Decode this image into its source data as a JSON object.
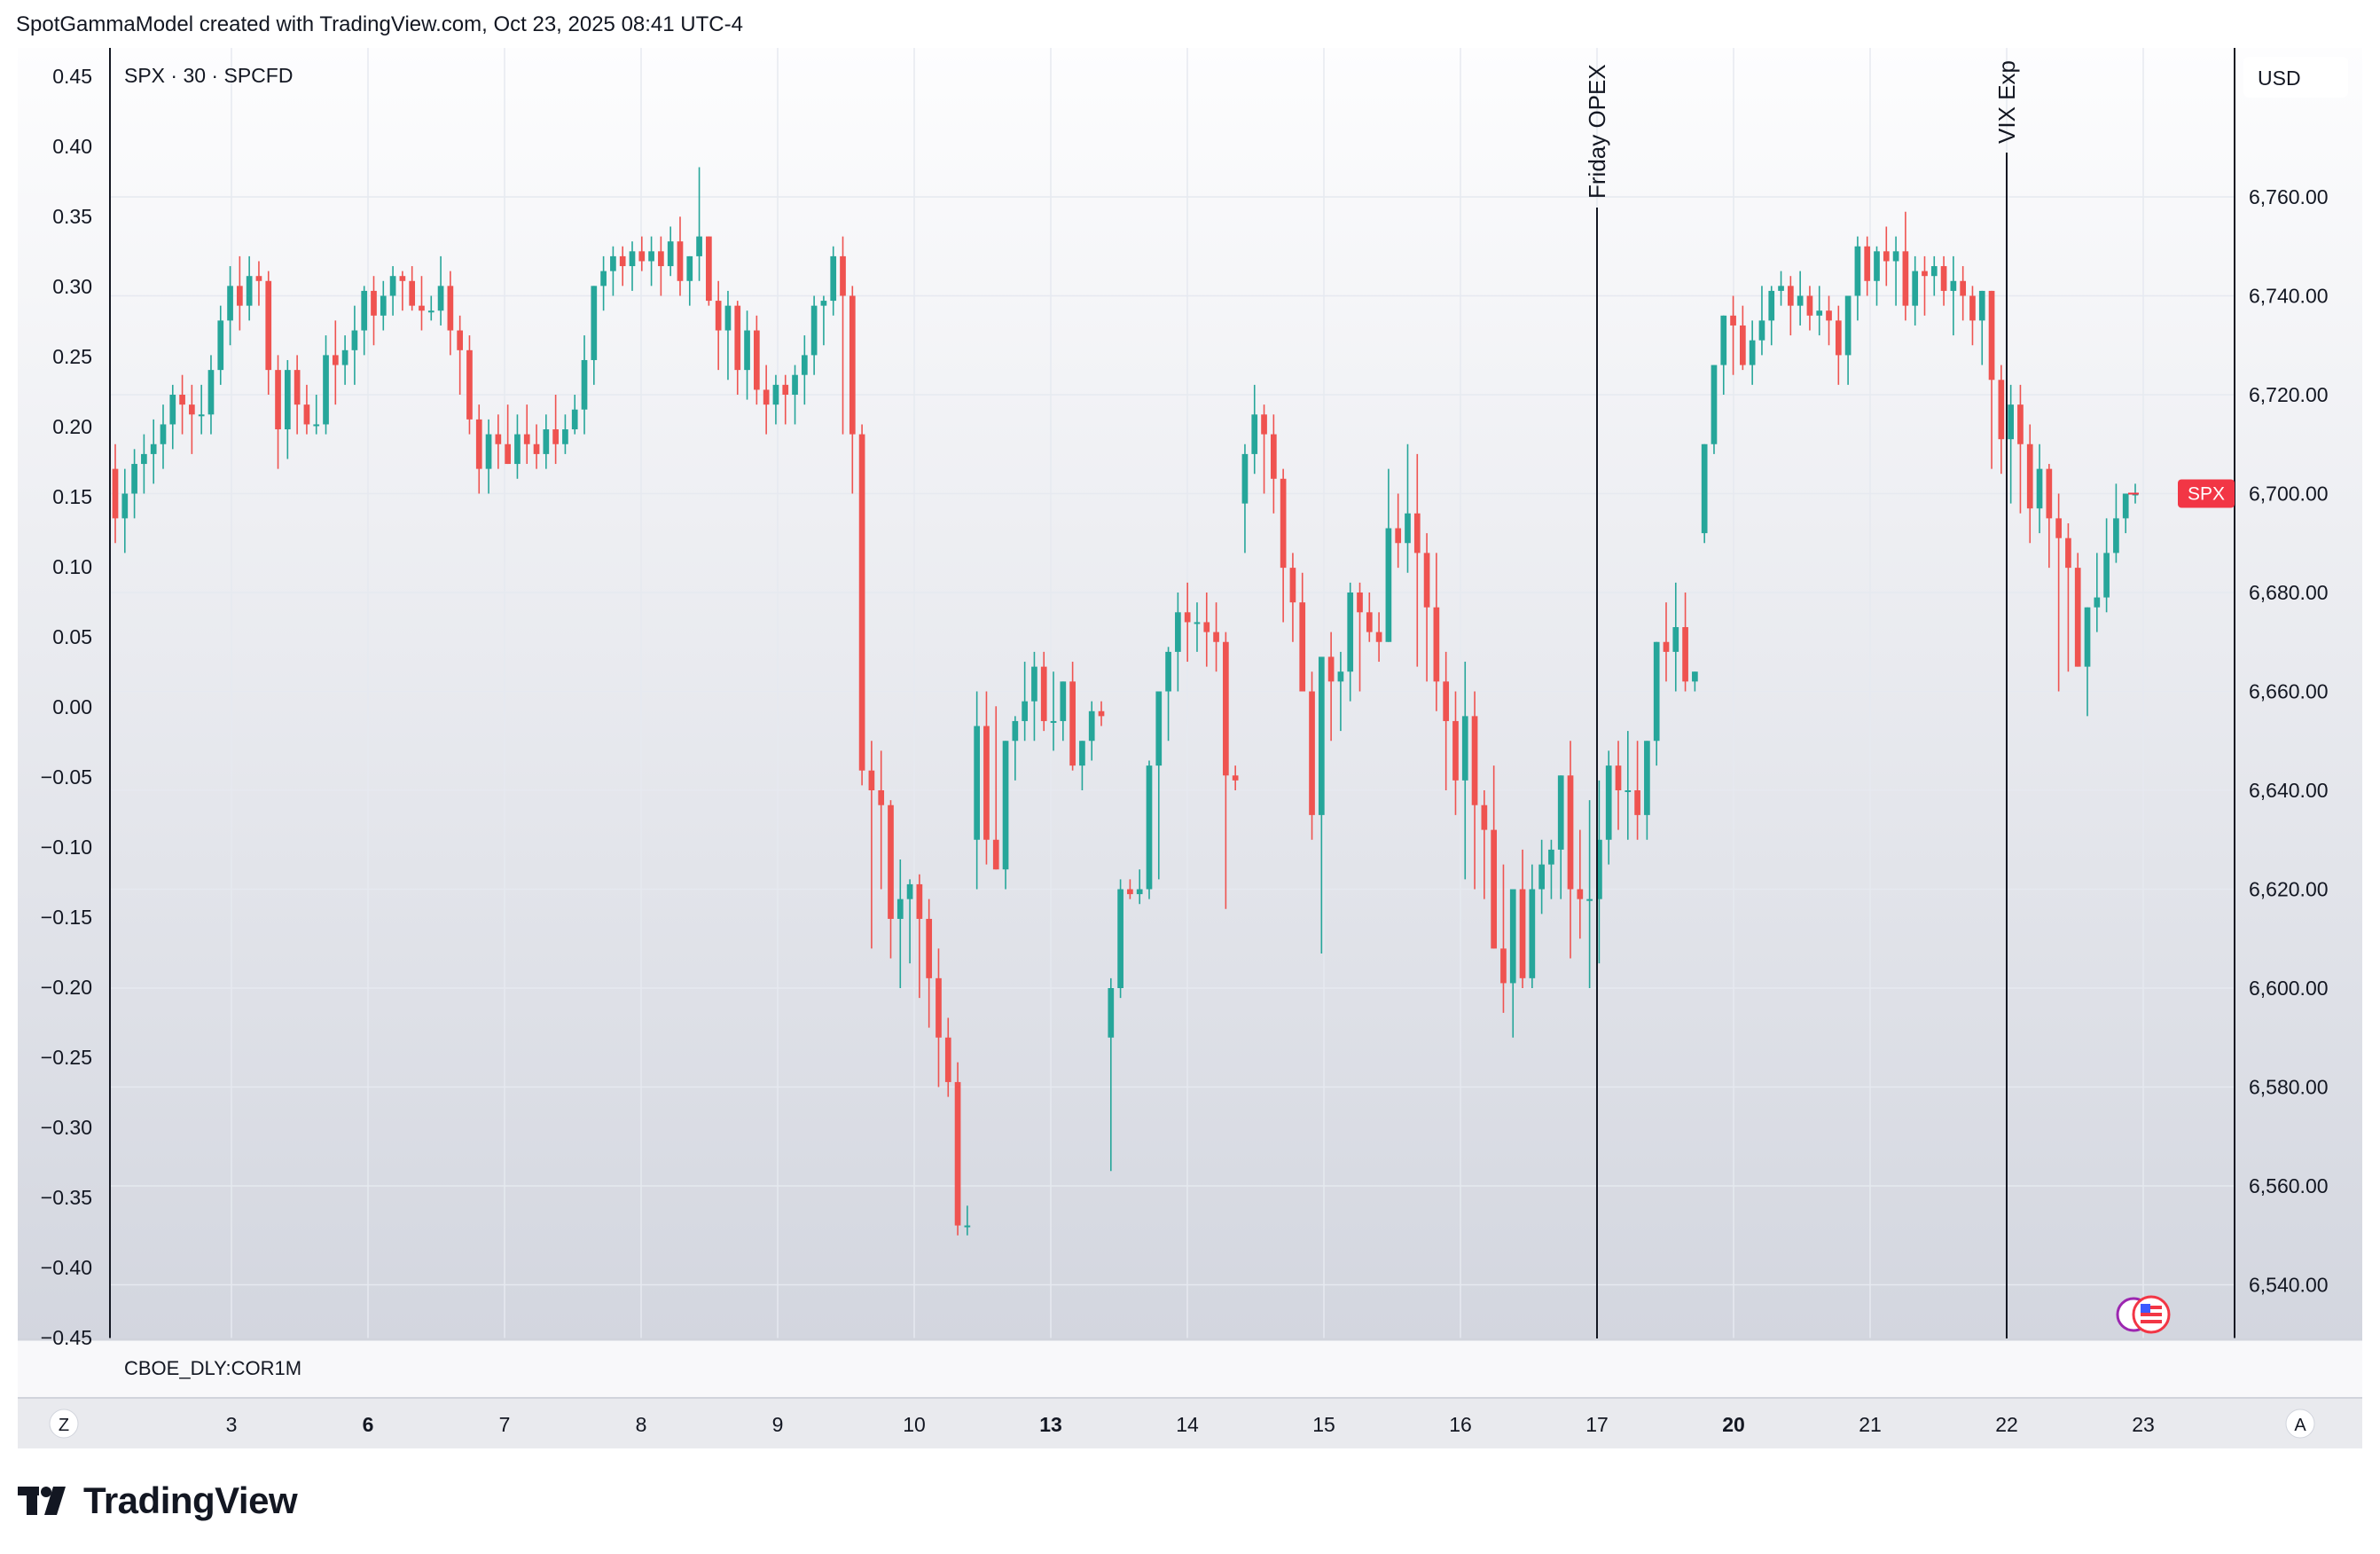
{
  "header": {
    "attribution": "SpotGammaModel created with TradingView.com, Oct 23, 2025 08:41 UTC-4"
  },
  "brand": {
    "name": "TradingView"
  },
  "colors": {
    "up": "#26a69a",
    "down": "#ef5350",
    "grid": "#e6e9f0",
    "axis_text": "#131722",
    "price_tag": "#f23645"
  },
  "chart_data": {
    "type": "candlestick",
    "symbol_label": "SPX · 30 · SPCFD",
    "currency_label": "USD",
    "price_tag": "SPX",
    "last_price": 6700.0,
    "left_axis": {
      "ticks": [
        "0.45",
        "0.40",
        "0.35",
        "0.30",
        "0.25",
        "0.20",
        "0.15",
        "0.10",
        "0.05",
        "0.00",
        "−0.05",
        "−0.10",
        "−0.15",
        "−0.20",
        "−0.25",
        "−0.30",
        "−0.35",
        "−0.40",
        "−0.45"
      ],
      "range": [
        -0.45,
        0.45
      ]
    },
    "right_axis": {
      "ticks": [
        "6,760.00",
        "6,740.00",
        "6,720.00",
        "6,700.00",
        "6,680.00",
        "6,660.00",
        "6,640.00",
        "6,620.00",
        "6,600.00",
        "6,580.00",
        "6,560.00",
        "6,540.00"
      ],
      "range": [
        6530,
        6790
      ]
    },
    "x_axis": {
      "ticks": [
        {
          "label": "3",
          "bold": false
        },
        {
          "label": "6",
          "bold": true
        },
        {
          "label": "7",
          "bold": false
        },
        {
          "label": "8",
          "bold": false
        },
        {
          "label": "9",
          "bold": false
        },
        {
          "label": "10",
          "bold": false
        },
        {
          "label": "13",
          "bold": true
        },
        {
          "label": "14",
          "bold": false
        },
        {
          "label": "15",
          "bold": false
        },
        {
          "label": "16",
          "bold": false
        },
        {
          "label": "17",
          "bold": false
        },
        {
          "label": "20",
          "bold": true
        },
        {
          "label": "21",
          "bold": false
        },
        {
          "label": "22",
          "bold": false
        },
        {
          "label": "23",
          "bold": false
        }
      ]
    },
    "annotations": [
      {
        "label": "Friday OPEX",
        "at": "17"
      },
      {
        "label": "VIX Exp",
        "at": "22"
      }
    ],
    "lower_pane_label": "CBOE_DLY:COR1M",
    "corner_buttons": {
      "left": "Z",
      "right": "A"
    },
    "candles_ohlc": [
      [
        6705,
        6710,
        6690,
        6695
      ],
      [
        6695,
        6705,
        6688,
        6700
      ],
      [
        6700,
        6709,
        6695,
        6706
      ],
      [
        6706,
        6712,
        6700,
        6708
      ],
      [
        6708,
        6715,
        6702,
        6710
      ],
      [
        6710,
        6718,
        6705,
        6714
      ],
      [
        6714,
        6722,
        6709,
        6720
      ],
      [
        6720,
        6724,
        6712,
        6718
      ],
      [
        6718,
        6722,
        6708,
        6716
      ],
      [
        6716,
        6722,
        6712,
        6716
      ],
      [
        6716,
        6728,
        6712,
        6725
      ],
      [
        6725,
        6738,
        6722,
        6735
      ],
      [
        6735,
        6746,
        6730,
        6742
      ],
      [
        6742,
        6748,
        6733,
        6738
      ],
      [
        6738,
        6748,
        6735,
        6744
      ],
      [
        6744,
        6747,
        6738,
        6743
      ],
      [
        6743,
        6745,
        6720,
        6725
      ],
      [
        6725,
        6728,
        6705,
        6713
      ],
      [
        6713,
        6727,
        6707,
        6725
      ],
      [
        6725,
        6728,
        6712,
        6718
      ],
      [
        6718,
        6722,
        6712,
        6714
      ],
      [
        6714,
        6720,
        6712,
        6714
      ],
      [
        6714,
        6732,
        6712,
        6728
      ],
      [
        6728,
        6735,
        6718,
        6726
      ],
      [
        6726,
        6732,
        6722,
        6729
      ],
      [
        6729,
        6738,
        6722,
        6733
      ],
      [
        6733,
        6742,
        6728,
        6741
      ],
      [
        6741,
        6744,
        6730,
        6736
      ],
      [
        6736,
        6743,
        6733,
        6740
      ],
      [
        6740,
        6746,
        6736,
        6744
      ],
      [
        6744,
        6745,
        6737,
        6743
      ],
      [
        6743,
        6746,
        6737,
        6738
      ],
      [
        6738,
        6744,
        6733,
        6737
      ],
      [
        6737,
        6740,
        6735,
        6737
      ],
      [
        6737,
        6748,
        6734,
        6742
      ],
      [
        6742,
        6745,
        6728,
        6733
      ],
      [
        6733,
        6736,
        6720,
        6729
      ],
      [
        6729,
        6732,
        6712,
        6715
      ],
      [
        6715,
        6718,
        6700,
        6705
      ],
      [
        6705,
        6715,
        6700,
        6712
      ],
      [
        6712,
        6716,
        6705,
        6710
      ],
      [
        6710,
        6718,
        6706,
        6706
      ],
      [
        6706,
        6716,
        6703,
        6712
      ],
      [
        6712,
        6718,
        6706,
        6710
      ],
      [
        6710,
        6714,
        6705,
        6708
      ],
      [
        6708,
        6716,
        6705,
        6713
      ],
      [
        6713,
        6720,
        6706,
        6710
      ],
      [
        6710,
        6716,
        6708,
        6713
      ],
      [
        6713,
        6720,
        6712,
        6717
      ],
      [
        6717,
        6732,
        6712,
        6727
      ],
      [
        6727,
        6742,
        6722,
        6742
      ],
      [
        6742,
        6748,
        6737,
        6745
      ],
      [
        6745,
        6750,
        6740,
        6748
      ],
      [
        6748,
        6750,
        6742,
        6746
      ],
      [
        6746,
        6751,
        6741,
        6749
      ],
      [
        6749,
        6752,
        6745,
        6747
      ],
      [
        6747,
        6752,
        6742,
        6749
      ],
      [
        6749,
        6752,
        6740,
        6746
      ],
      [
        6746,
        6754,
        6744,
        6751
      ],
      [
        6751,
        6756,
        6740,
        6743
      ],
      [
        6743,
        6747,
        6738,
        6748
      ],
      [
        6748,
        6766,
        6743,
        6752
      ],
      [
        6752,
        6752,
        6738,
        6739
      ],
      [
        6739,
        6743,
        6725,
        6733
      ],
      [
        6733,
        6741,
        6723,
        6738
      ],
      [
        6738,
        6739,
        6720,
        6725
      ],
      [
        6725,
        6737,
        6719,
        6733
      ],
      [
        6733,
        6736,
        6718,
        6721
      ],
      [
        6721,
        6726,
        6712,
        6718
      ],
      [
        6718,
        6724,
        6714,
        6722
      ],
      [
        6722,
        6724,
        6714,
        6720
      ],
      [
        6720,
        6726,
        6714,
        6724
      ],
      [
        6724,
        6732,
        6718,
        6728
      ],
      [
        6728,
        6740,
        6724,
        6738
      ],
      [
        6738,
        6740,
        6730,
        6739
      ],
      [
        6739,
        6750,
        6736,
        6748
      ],
      [
        6748,
        6752,
        6712,
        6740
      ],
      [
        6740,
        6742,
        6700,
        6712
      ],
      [
        6712,
        6714,
        6641,
        6644
      ],
      [
        6644,
        6650,
        6608,
        6640
      ],
      [
        6640,
        6648,
        6620,
        6637
      ],
      [
        6637,
        6638,
        6606,
        6614
      ],
      [
        6614,
        6626,
        6600,
        6618
      ],
      [
        6618,
        6622,
        6605,
        6621
      ],
      [
        6621,
        6623,
        6598,
        6614
      ],
      [
        6614,
        6618,
        6592,
        6602
      ],
      [
        6602,
        6608,
        6580,
        6590
      ],
      [
        6590,
        6594,
        6578,
        6581
      ],
      [
        6581,
        6585,
        6550,
        6552
      ],
      [
        6552,
        6556,
        6550,
        6552
      ],
      [
        6630,
        6660,
        6620,
        6653
      ],
      [
        6653,
        6660,
        6625,
        6630
      ],
      [
        6630,
        6657,
        6624,
        6624
      ],
      [
        6624,
        6650,
        6620,
        6650
      ],
      [
        6650,
        6655,
        6642,
        6654
      ],
      [
        6654,
        6666,
        6650,
        6658
      ],
      [
        6658,
        6668,
        6650,
        6665
      ],
      [
        6665,
        6668,
        6652,
        6654
      ],
      [
        6654,
        6664,
        6648,
        6654
      ],
      [
        6654,
        6662,
        6650,
        6662
      ],
      [
        6662,
        6666,
        6644,
        6645
      ],
      [
        6645,
        6650,
        6640,
        6650
      ],
      [
        6650,
        6658,
        6646,
        6656
      ],
      [
        6656,
        6658,
        6653,
        6655
      ],
      [
        6590,
        6602,
        6563,
        6600
      ],
      [
        6600,
        6622,
        6598,
        6620
      ],
      [
        6620,
        6622,
        6618,
        6619
      ],
      [
        6619,
        6624,
        6617,
        6620
      ],
      [
        6620,
        6646,
        6618,
        6645
      ],
      [
        6645,
        6655,
        6622,
        6660
      ],
      [
        6660,
        6669,
        6650,
        6668
      ],
      [
        6668,
        6680,
        6660,
        6676
      ],
      [
        6676,
        6682,
        6666,
        6674
      ],
      [
        6674,
        6678,
        6668,
        6674
      ],
      [
        6674,
        6680,
        6665,
        6672
      ],
      [
        6672,
        6678,
        6664,
        6670
      ],
      [
        6670,
        6672,
        6616,
        6643
      ],
      [
        6643,
        6645,
        6640,
        6642
      ],
      [
        6698,
        6710,
        6688,
        6708
      ],
      [
        6708,
        6722,
        6704,
        6716
      ],
      [
        6716,
        6718,
        6700,
        6712
      ],
      [
        6712,
        6716,
        6696,
        6703
      ],
      [
        6703,
        6705,
        6674,
        6685
      ],
      [
        6685,
        6688,
        6670,
        6678
      ],
      [
        6678,
        6684,
        6663,
        6660
      ],
      [
        6660,
        6664,
        6630,
        6635
      ],
      [
        6635,
        6664,
        6607,
        6667
      ],
      [
        6667,
        6672,
        6650,
        6662
      ],
      [
        6662,
        6668,
        6652,
        6664
      ],
      [
        6664,
        6682,
        6658,
        6680
      ],
      [
        6680,
        6682,
        6660,
        6676
      ],
      [
        6676,
        6680,
        6670,
        6672
      ],
      [
        6672,
        6676,
        6666,
        6670
      ],
      [
        6670,
        6705,
        6680,
        6693
      ],
      [
        6693,
        6700,
        6685,
        6690
      ],
      [
        6690,
        6710,
        6684,
        6696
      ],
      [
        6696,
        6708,
        6665,
        6688
      ],
      [
        6688,
        6692,
        6662,
        6677
      ],
      [
        6677,
        6688,
        6656,
        6662
      ],
      [
        6662,
        6668,
        6640,
        6654
      ],
      [
        6654,
        6660,
        6635,
        6642
      ],
      [
        6642,
        6666,
        6622,
        6655
      ],
      [
        6655,
        6660,
        6620,
        6637
      ],
      [
        6637,
        6640,
        6618,
        6632
      ],
      [
        6632,
        6645,
        6612,
        6608
      ],
      [
        6608,
        6625,
        6595,
        6601
      ],
      [
        6601,
        6612,
        6590,
        6620
      ],
      [
        6620,
        6628,
        6600,
        6602
      ],
      [
        6602,
        6625,
        6600,
        6620
      ],
      [
        6620,
        6630,
        6615,
        6625
      ],
      [
        6625,
        6630,
        6618,
        6628
      ],
      [
        6628,
        6635,
        6618,
        6643
      ],
      [
        6643,
        6650,
        6606,
        6620
      ],
      [
        6620,
        6632,
        6610,
        6618
      ],
      [
        6618,
        6638,
        6600,
        6618
      ],
      [
        6618,
        6642,
        6605,
        6630
      ],
      [
        6630,
        6648,
        6625,
        6645
      ],
      [
        6645,
        6650,
        6632,
        6640
      ],
      [
        6640,
        6652,
        6630,
        6640
      ],
      [
        6640,
        6650,
        6630,
        6635
      ],
      [
        6635,
        6642,
        6630,
        6650
      ],
      [
        6650,
        6670,
        6645,
        6670
      ],
      [
        6670,
        6678,
        6662,
        6668
      ],
      [
        6668,
        6682,
        6660,
        6673
      ],
      [
        6673,
        6680,
        6660,
        6662
      ],
      [
        6662,
        6664,
        6660,
        6664
      ],
      [
        6692,
        6704,
        6690,
        6710
      ],
      [
        6710,
        6722,
        6708,
        6726
      ],
      [
        6726,
        6735,
        6720,
        6736
      ],
      [
        6736,
        6740,
        6724,
        6734
      ],
      [
        6734,
        6738,
        6725,
        6726
      ],
      [
        6726,
        6735,
        6722,
        6731
      ],
      [
        6731,
        6742,
        6728,
        6735
      ],
      [
        6735,
        6742,
        6730,
        6741
      ],
      [
        6741,
        6745,
        6738,
        6742
      ],
      [
        6742,
        6744,
        6732,
        6738
      ],
      [
        6738,
        6745,
        6734,
        6740
      ],
      [
        6740,
        6742,
        6733,
        6736
      ],
      [
        6736,
        6742,
        6732,
        6737
      ],
      [
        6737,
        6740,
        6730,
        6735
      ],
      [
        6735,
        6738,
        6722,
        6728
      ],
      [
        6728,
        6740,
        6722,
        6740
      ],
      [
        6740,
        6752,
        6735,
        6750
      ],
      [
        6750,
        6752,
        6740,
        6743
      ],
      [
        6743,
        6750,
        6738,
        6749
      ],
      [
        6749,
        6754,
        6742,
        6747
      ],
      [
        6747,
        6752,
        6738,
        6749
      ],
      [
        6749,
        6757,
        6735,
        6738
      ],
      [
        6738,
        6748,
        6734,
        6745
      ],
      [
        6745,
        6748,
        6736,
        6744
      ],
      [
        6744,
        6748,
        6740,
        6746
      ],
      [
        6746,
        6748,
        6738,
        6741
      ],
      [
        6741,
        6748,
        6732,
        6743
      ],
      [
        6743,
        6746,
        6735,
        6740
      ],
      [
        6740,
        6742,
        6730,
        6735
      ],
      [
        6735,
        6740,
        6726,
        6741
      ],
      [
        6741,
        6738,
        6705,
        6723
      ],
      [
        6723,
        6726,
        6704,
        6711
      ],
      [
        6711,
        6722,
        6698,
        6718
      ],
      [
        6718,
        6722,
        6696,
        6710
      ],
      [
        6710,
        6714,
        6690,
        6697
      ],
      [
        6697,
        6710,
        6692,
        6705
      ],
      [
        6705,
        6706,
        6685,
        6695
      ],
      [
        6695,
        6700,
        6660,
        6691
      ],
      [
        6691,
        6694,
        6664,
        6685
      ],
      [
        6685,
        6688,
        6668,
        6665
      ],
      [
        6665,
        6672,
        6655,
        6677
      ],
      [
        6677,
        6688,
        6672,
        6679
      ],
      [
        6679,
        6695,
        6676,
        6688
      ],
      [
        6688,
        6702,
        6686,
        6695
      ],
      [
        6695,
        6700,
        6692,
        6700
      ],
      [
        6700,
        6702,
        6698,
        6700
      ]
    ]
  }
}
